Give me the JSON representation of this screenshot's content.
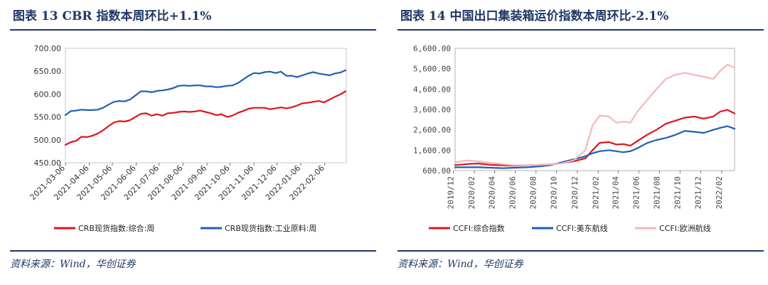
{
  "panels": {
    "left": {
      "title": "图表 13   CBR 指数本周环比+1.1%",
      "source": "资料来源：Wind，华创证券"
    },
    "right": {
      "title": "图表 14   中国出口集装箱运价指数本周环比-2.1%",
      "source": "资料来源：Wind，华创证券"
    }
  },
  "chart_data": [
    {
      "type": "line",
      "title": "图表 13   CBR 指数本周环比+1.1%",
      "ylim": [
        450,
        700
      ],
      "yticks": [
        "700.00",
        "650.00",
        "600.00",
        "550.00",
        "500.00",
        "450.00"
      ],
      "yticks_values": [
        700,
        650,
        600,
        550,
        500,
        450
      ],
      "xticks": [
        "2021-03-06",
        "2021-04-06",
        "2021-05-06",
        "2021-06-06",
        "2021-07-06",
        "2021-08-06",
        "2021-09-06",
        "2021-10-06",
        "2021-11-06",
        "2021-12-06",
        "2022-01-06",
        "2022-02-06"
      ],
      "x_start": "2021-03-06",
      "x_end": "2022-03-06",
      "legend_position": "bottom",
      "grid": false,
      "series": [
        {
          "name": "CRB现货指数:综合:周",
          "color": "#e0141e",
          "points": [
            [
              "2021-03-06",
              489
            ],
            [
              "2021-03-13",
              495
            ],
            [
              "2021-03-20",
              498
            ],
            [
              "2021-03-27",
              507
            ],
            [
              "2021-04-03",
              506
            ],
            [
              "2021-04-10",
              509
            ],
            [
              "2021-04-17",
              514
            ],
            [
              "2021-04-24",
              521
            ],
            [
              "2021-05-01",
              530
            ],
            [
              "2021-05-08",
              538
            ],
            [
              "2021-05-15",
              541
            ],
            [
              "2021-05-22",
              540
            ],
            [
              "2021-05-29",
              543
            ],
            [
              "2021-06-05",
              550
            ],
            [
              "2021-06-12",
              557
            ],
            [
              "2021-06-19",
              558
            ],
            [
              "2021-06-26",
              553
            ],
            [
              "2021-07-03",
              556
            ],
            [
              "2021-07-10",
              553
            ],
            [
              "2021-07-17",
              558
            ],
            [
              "2021-07-24",
              559
            ],
            [
              "2021-07-31",
              561
            ],
            [
              "2021-08-07",
              562
            ],
            [
              "2021-08-14",
              561
            ],
            [
              "2021-08-21",
              562
            ],
            [
              "2021-08-28",
              564
            ],
            [
              "2021-09-04",
              561
            ],
            [
              "2021-09-11",
              558
            ],
            [
              "2021-09-18",
              554
            ],
            [
              "2021-09-25",
              556
            ],
            [
              "2021-10-02",
              550
            ],
            [
              "2021-10-09",
              553
            ],
            [
              "2021-10-16",
              559
            ],
            [
              "2021-10-23",
              563
            ],
            [
              "2021-10-30",
              568
            ],
            [
              "2021-11-06",
              570
            ],
            [
              "2021-11-13",
              570
            ],
            [
              "2021-11-20",
              570
            ],
            [
              "2021-11-27",
              567
            ],
            [
              "2021-12-04",
              569
            ],
            [
              "2021-12-11",
              571
            ],
            [
              "2021-12-18",
              569
            ],
            [
              "2021-12-25",
              571
            ],
            [
              "2022-01-01",
              575
            ],
            [
              "2022-01-08",
              580
            ],
            [
              "2022-01-15",
              581
            ],
            [
              "2022-01-22",
              583
            ],
            [
              "2022-01-29",
              585
            ],
            [
              "2022-02-05",
              582
            ],
            [
              "2022-02-12",
              588
            ],
            [
              "2022-02-19",
              594
            ],
            [
              "2022-02-26",
              599
            ],
            [
              "2022-03-05",
              606
            ]
          ]
        },
        {
          "name": "CRB现货指数:工业原料:周",
          "color": "#1f5fb4",
          "points": [
            [
              "2021-03-06",
              554
            ],
            [
              "2021-03-13",
              563
            ],
            [
              "2021-03-20",
              564
            ],
            [
              "2021-03-27",
              566
            ],
            [
              "2021-04-03",
              565
            ],
            [
              "2021-04-10",
              565
            ],
            [
              "2021-04-17",
              566
            ],
            [
              "2021-04-24",
              570
            ],
            [
              "2021-05-01",
              577
            ],
            [
              "2021-05-08",
              583
            ],
            [
              "2021-05-15",
              585
            ],
            [
              "2021-05-22",
              584
            ],
            [
              "2021-05-29",
              588
            ],
            [
              "2021-06-05",
              597
            ],
            [
              "2021-06-12",
              606
            ],
            [
              "2021-06-19",
              606
            ],
            [
              "2021-06-26",
              604
            ],
            [
              "2021-07-03",
              607
            ],
            [
              "2021-07-10",
              608
            ],
            [
              "2021-07-17",
              610
            ],
            [
              "2021-07-24",
              613
            ],
            [
              "2021-07-31",
              618
            ],
            [
              "2021-08-07",
              619
            ],
            [
              "2021-08-14",
              618
            ],
            [
              "2021-08-21",
              619
            ],
            [
              "2021-08-28",
              619
            ],
            [
              "2021-09-04",
              617
            ],
            [
              "2021-09-11",
              617
            ],
            [
              "2021-09-18",
              615
            ],
            [
              "2021-09-25",
              616
            ],
            [
              "2021-10-02",
              618
            ],
            [
              "2021-10-09",
              619
            ],
            [
              "2021-10-16",
              624
            ],
            [
              "2021-10-23",
              632
            ],
            [
              "2021-10-30",
              640
            ],
            [
              "2021-11-06",
              646
            ],
            [
              "2021-11-13",
              645
            ],
            [
              "2021-11-20",
              648
            ],
            [
              "2021-11-27",
              649
            ],
            [
              "2021-12-04",
              646
            ],
            [
              "2021-12-11",
              649
            ],
            [
              "2021-12-18",
              640
            ],
            [
              "2021-12-25",
              640
            ],
            [
              "2022-01-01",
              637
            ],
            [
              "2022-01-08",
              641
            ],
            [
              "2022-01-15",
              645
            ],
            [
              "2022-01-22",
              648
            ],
            [
              "2022-01-29",
              645
            ],
            [
              "2022-02-05",
              643
            ],
            [
              "2022-02-12",
              641
            ],
            [
              "2022-02-19",
              645
            ],
            [
              "2022-02-26",
              647
            ],
            [
              "2022-03-05",
              652
            ]
          ]
        }
      ]
    },
    {
      "type": "line",
      "title": "图表 14   中国出口集装箱运价指数本周环比-2.1%",
      "ylim": [
        600,
        6600
      ],
      "yticks": [
        "6,600.00",
        "5,600.00",
        "4,600.00",
        "3,600.00",
        "2,600.00",
        "1,600.00",
        "600.00"
      ],
      "yticks_values": [
        6600,
        5600,
        4600,
        3600,
        2600,
        1600,
        600
      ],
      "xticks": [
        "2019/12",
        "2020/02",
        "2020/04",
        "2020/06",
        "2020/08",
        "2020/10",
        "2020/12",
        "2021/02",
        "2021/04",
        "2021/06",
        "2021/08",
        "2021/10",
        "2021/12",
        "2022/02"
      ],
      "x_start": "2019-12-06",
      "x_end": "2022-03-11",
      "legend_position": "bottom",
      "grid": false,
      "series": [
        {
          "name": "CCFI:综合指数",
          "color": "#e0141e",
          "points": [
            [
              "2019-12-06",
              870
            ],
            [
              "2020-01-10",
              920
            ],
            [
              "2020-02-14",
              950
            ],
            [
              "2020-03-20",
              880
            ],
            [
              "2020-04-24",
              860
            ],
            [
              "2020-05-29",
              840
            ],
            [
              "2020-07-03",
              860
            ],
            [
              "2020-08-07",
              880
            ],
            [
              "2020-09-11",
              900
            ],
            [
              "2020-10-16",
              960
            ],
            [
              "2020-11-20",
              1050
            ],
            [
              "2020-12-25",
              1200
            ],
            [
              "2021-01-15",
              1600
            ],
            [
              "2021-02-05",
              1960
            ],
            [
              "2021-03-05",
              2000
            ],
            [
              "2021-03-26",
              1880
            ],
            [
              "2021-04-16",
              1900
            ],
            [
              "2021-05-07",
              1820
            ],
            [
              "2021-05-28",
              2050
            ],
            [
              "2021-06-25",
              2350
            ],
            [
              "2021-07-23",
              2600
            ],
            [
              "2021-08-20",
              2900
            ],
            [
              "2021-09-17",
              3050
            ],
            [
              "2021-10-15",
              3200
            ],
            [
              "2021-11-12",
              3250
            ],
            [
              "2021-12-10",
              3150
            ],
            [
              "2022-01-07",
              3250
            ],
            [
              "2022-01-28",
              3500
            ],
            [
              "2022-02-18",
              3580
            ],
            [
              "2022-03-11",
              3400
            ]
          ]
        },
        {
          "name": "CCFI:美东航线",
          "color": "#1f5fb4",
          "points": [
            [
              "2019-12-06",
              760
            ],
            [
              "2020-01-10",
              760
            ],
            [
              "2020-02-14",
              760
            ],
            [
              "2020-03-20",
              740
            ],
            [
              "2020-04-24",
              720
            ],
            [
              "2020-05-29",
              740
            ],
            [
              "2020-07-03",
              760
            ],
            [
              "2020-08-07",
              800
            ],
            [
              "2020-09-11",
              860
            ],
            [
              "2020-10-16",
              1000
            ],
            [
              "2020-11-20",
              1150
            ],
            [
              "2020-12-25",
              1300
            ],
            [
              "2021-01-15",
              1450
            ],
            [
              "2021-02-05",
              1550
            ],
            [
              "2021-03-05",
              1600
            ],
            [
              "2021-03-26",
              1550
            ],
            [
              "2021-04-16",
              1500
            ],
            [
              "2021-05-07",
              1550
            ],
            [
              "2021-05-28",
              1700
            ],
            [
              "2021-06-25",
              1950
            ],
            [
              "2021-07-23",
              2100
            ],
            [
              "2021-08-20",
              2200
            ],
            [
              "2021-09-17",
              2350
            ],
            [
              "2021-10-15",
              2550
            ],
            [
              "2021-11-12",
              2500
            ],
            [
              "2021-12-10",
              2450
            ],
            [
              "2022-01-07",
              2600
            ],
            [
              "2022-01-28",
              2700
            ],
            [
              "2022-02-18",
              2780
            ],
            [
              "2022-03-11",
              2650
            ]
          ]
        },
        {
          "name": "CCFI:欧洲航线",
          "color": "#f2b8ba",
          "points": [
            [
              "2019-12-06",
              1000
            ],
            [
              "2020-01-10",
              1100
            ],
            [
              "2020-02-14",
              1050
            ],
            [
              "2020-03-20",
              980
            ],
            [
              "2020-04-24",
              920
            ],
            [
              "2020-05-29",
              860
            ],
            [
              "2020-07-03",
              860
            ],
            [
              "2020-08-07",
              880
            ],
            [
              "2020-09-11",
              900
            ],
            [
              "2020-10-16",
              950
            ],
            [
              "2020-11-20",
              1100
            ],
            [
              "2020-12-25",
              1600
            ],
            [
              "2021-01-15",
              2800
            ],
            [
              "2021-02-05",
              3300
            ],
            [
              "2021-03-05",
              3250
            ],
            [
              "2021-03-26",
              2950
            ],
            [
              "2021-04-16",
              3000
            ],
            [
              "2021-05-07",
              2950
            ],
            [
              "2021-05-28",
              3500
            ],
            [
              "2021-06-25",
              4050
            ],
            [
              "2021-07-23",
              4600
            ],
            [
              "2021-08-20",
              5100
            ],
            [
              "2021-09-17",
              5300
            ],
            [
              "2021-10-15",
              5400
            ],
            [
              "2021-11-12",
              5300
            ],
            [
              "2021-12-10",
              5200
            ],
            [
              "2022-01-07",
              5100
            ],
            [
              "2022-01-28",
              5500
            ],
            [
              "2022-02-18",
              5800
            ],
            [
              "2022-03-11",
              5650
            ]
          ]
        }
      ]
    }
  ]
}
